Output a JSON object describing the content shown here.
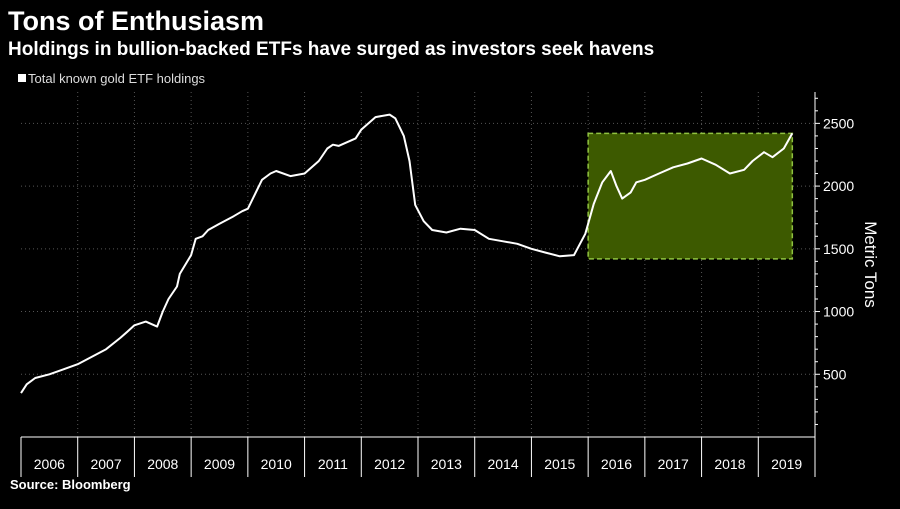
{
  "header": {
    "title": "Tons of Enthusiasm",
    "subtitle": "Holdings in bullion-backed ETFs have surged as investors seek havens"
  },
  "footer": {
    "source": "Source:  Bloomberg"
  },
  "colors": {
    "background": "#000000",
    "line": "#ffffff",
    "highlight_fill": "#3d5a00",
    "highlight_border": "#8fc23f",
    "grid": "#555555"
  },
  "chart_data": {
    "type": "line",
    "title": "Tons of Enthusiasm",
    "subtitle": "Holdings in bullion-backed ETFs have surged as investors seek havens",
    "ylabel": "Metric Tons",
    "xlabel": "",
    "ylim": [
      0,
      2750
    ],
    "xlim": [
      2006.0,
      2020.0
    ],
    "y_ticks": [
      500,
      1000,
      1500,
      2000,
      2500
    ],
    "x_categories": [
      "2006",
      "2007",
      "2008",
      "2009",
      "2010",
      "2011",
      "2012",
      "2013",
      "2014",
      "2015",
      "2016",
      "2017",
      "2018",
      "2019"
    ],
    "grid": true,
    "legend": "top-left",
    "series": [
      {
        "name": "Total known gold ETF holdings",
        "x": [
          2006.0,
          2006.1,
          2006.25,
          2006.5,
          2006.75,
          2007.0,
          2007.25,
          2007.5,
          2007.75,
          2007.9,
          2008.0,
          2008.2,
          2008.4,
          2008.5,
          2008.6,
          2008.75,
          2008.8,
          2009.0,
          2009.08,
          2009.2,
          2009.3,
          2009.5,
          2009.75,
          2009.9,
          2010.0,
          2010.25,
          2010.4,
          2010.5,
          2010.75,
          2011.0,
          2011.25,
          2011.4,
          2011.5,
          2011.6,
          2011.75,
          2011.9,
          2012.0,
          2012.25,
          2012.5,
          2012.6,
          2012.75,
          2012.85,
          2012.95,
          2013.1,
          2013.25,
          2013.5,
          2013.75,
          2014.0,
          2014.25,
          2014.5,
          2014.75,
          2015.0,
          2015.25,
          2015.5,
          2015.75,
          2015.95,
          2016.1,
          2016.25,
          2016.4,
          2016.5,
          2016.6,
          2016.75,
          2016.85,
          2017.0,
          2017.25,
          2017.5,
          2017.75,
          2018.0,
          2018.25,
          2018.5,
          2018.75,
          2018.9,
          2019.1,
          2019.25,
          2019.45,
          2019.6
        ],
        "values": [
          350,
          420,
          470,
          500,
          540,
          580,
          640,
          700,
          790,
          850,
          890,
          920,
          880,
          1000,
          1100,
          1200,
          1300,
          1450,
          1580,
          1600,
          1650,
          1700,
          1760,
          1800,
          1820,
          2050,
          2100,
          2120,
          2080,
          2100,
          2200,
          2300,
          2330,
          2320,
          2350,
          2380,
          2450,
          2550,
          2570,
          2540,
          2400,
          2200,
          1850,
          1720,
          1650,
          1630,
          1660,
          1650,
          1580,
          1560,
          1540,
          1500,
          1470,
          1440,
          1450,
          1620,
          1860,
          2030,
          2120,
          2000,
          1900,
          1950,
          2030,
          2050,
          2100,
          2150,
          2180,
          2220,
          2170,
          2100,
          2130,
          2200,
          2270,
          2230,
          2300,
          2420
        ]
      }
    ],
    "annotations": [
      {
        "type": "highlight-box",
        "x_range": [
          2016.0,
          2019.6
        ],
        "y_range": [
          1420,
          2420
        ]
      }
    ]
  }
}
